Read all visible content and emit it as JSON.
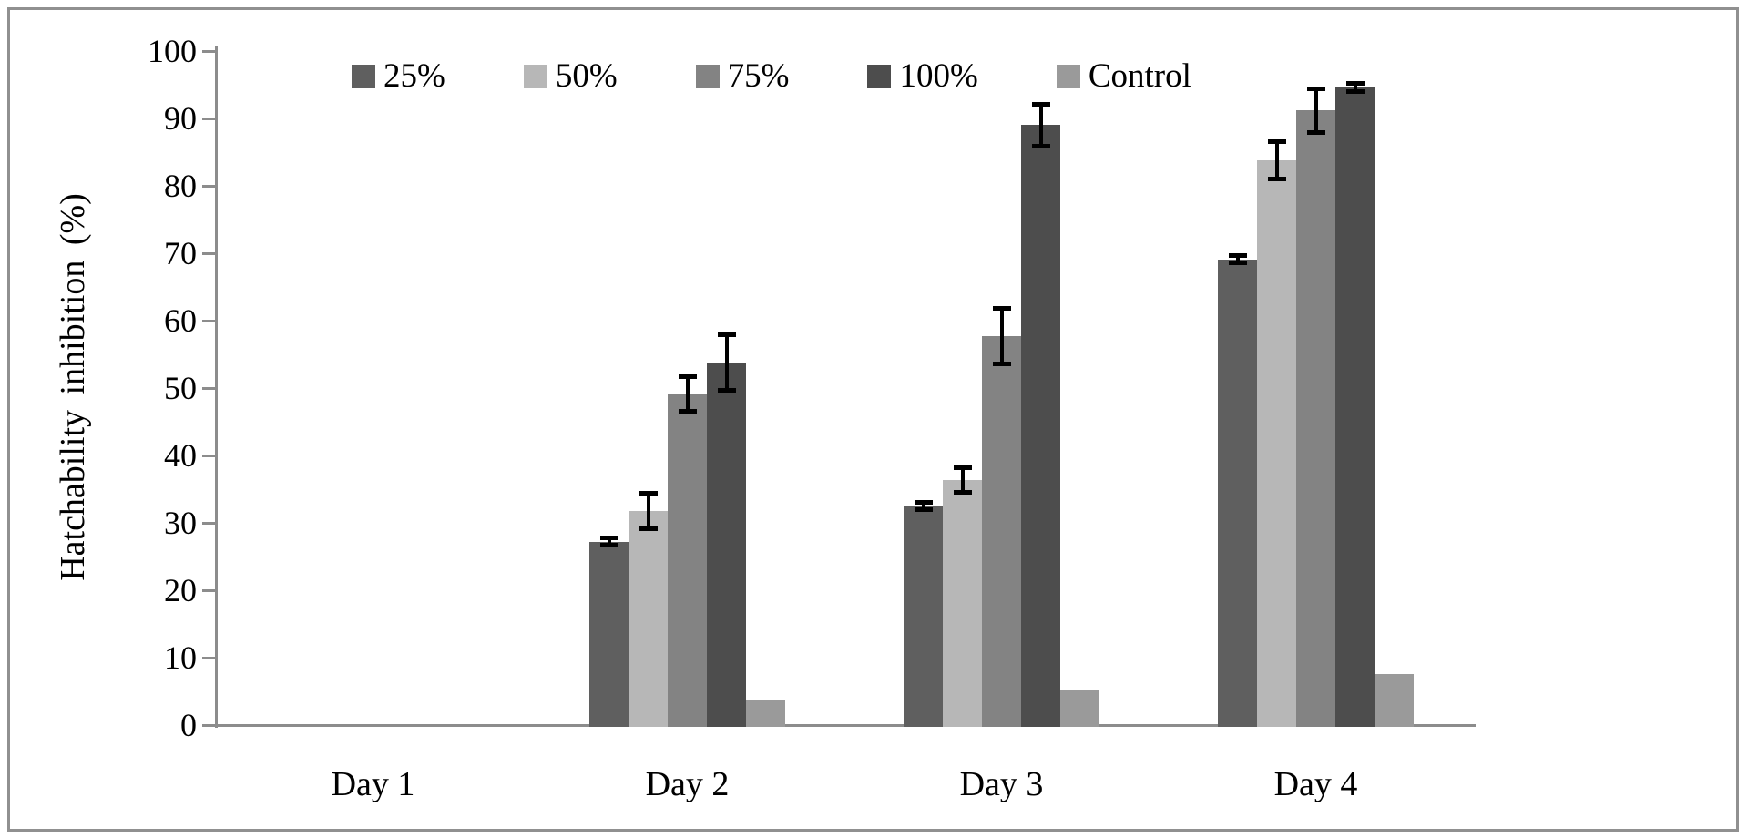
{
  "chart_data": {
    "type": "bar",
    "title": "",
    "xlabel": "",
    "ylabel": "Hatchability inhibition (%)",
    "categories": [
      "Day 1",
      "Day 2",
      "Day 3",
      "Day 4"
    ],
    "series": [
      {
        "name": "25%",
        "color": "#5f5f5f",
        "values": [
          0,
          27.2,
          32.5,
          69.1
        ],
        "errors": [
          0,
          0.6,
          0.6,
          0.6
        ]
      },
      {
        "name": "50%",
        "color": "#b7b7b7",
        "values": [
          0,
          31.8,
          36.3,
          83.8
        ],
        "errors": [
          0,
          2.7,
          1.9,
          2.8
        ]
      },
      {
        "name": "75%",
        "color": "#838383",
        "values": [
          0,
          49.1,
          57.7,
          91.2
        ],
        "errors": [
          0,
          2.6,
          4.2,
          3.3
        ]
      },
      {
        "name": "100%",
        "color": "#4d4d4d",
        "values": [
          0,
          53.8,
          89.0,
          94.6
        ],
        "errors": [
          0,
          4.2,
          3.2,
          0.7
        ]
      },
      {
        "name": "Control",
        "color": "#9a9a9a",
        "values": [
          0,
          3.6,
          5.2,
          7.6
        ],
        "errors": [
          0,
          0,
          0,
          0
        ]
      }
    ],
    "ylim": [
      0,
      100
    ],
    "ytick_step": 10,
    "yticks": [
      0,
      10,
      20,
      30,
      40,
      50,
      60,
      70,
      80,
      90,
      100
    ],
    "legend_position": "top",
    "grid": "off",
    "error_bar_color": "#000000",
    "axis_color": "#8c8c8c",
    "frame_border_color": "#909090"
  }
}
